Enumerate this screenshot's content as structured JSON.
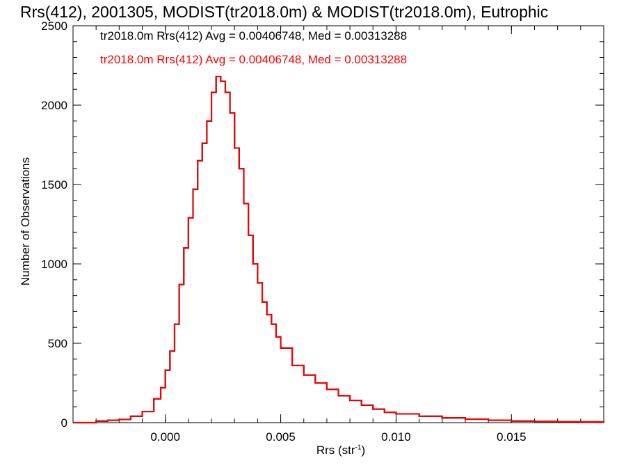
{
  "chart_data": {
    "type": "line",
    "title": "Rrs(412), 2001305, MODIST(tr2018.0m) & MODIST(tr2018.0m), Eutrophic",
    "xlabel_main": "Rrs (str",
    "xlabel_sup": "-1",
    "xlabel_close": ")",
    "ylabel": "Number of Observations",
    "xlim": [
      -0.004,
      0.019
    ],
    "ylim": [
      0,
      2500
    ],
    "x_ticks": [
      0.0,
      0.005,
      0.01,
      0.015
    ],
    "x_tick_labels": [
      "0.000",
      "0.005",
      "0.010",
      "0.015"
    ],
    "y_ticks": [
      0,
      500,
      1000,
      1500,
      2000,
      2500
    ],
    "y_tick_labels": [
      "0",
      "500",
      "1000",
      "1500",
      "2000",
      "2500"
    ],
    "annotations": [
      {
        "text": "tr2018.0m Rrs(412) Avg = 0.00406748, Med = 0.00313288",
        "color": "#000000"
      },
      {
        "text": "tr2018.0m Rrs(412) Avg = 0.00406748, Med = 0.00313288",
        "color": "#ff0000"
      }
    ],
    "series": [
      {
        "color": "#ff0000",
        "step": true,
        "x": [
          -0.004,
          -0.003,
          -0.0025,
          -0.002,
          -0.0015,
          -0.001,
          -0.0005,
          -0.0002,
          0.0,
          0.0002,
          0.0004,
          0.0006,
          0.0008,
          0.001,
          0.0012,
          0.0014,
          0.0016,
          0.0018,
          0.002,
          0.0022,
          0.0024,
          0.0026,
          0.0028,
          0.003,
          0.0032,
          0.0034,
          0.0036,
          0.0038,
          0.004,
          0.0042,
          0.0044,
          0.0046,
          0.0048,
          0.005,
          0.0055,
          0.006,
          0.0065,
          0.007,
          0.0075,
          0.008,
          0.0085,
          0.009,
          0.0095,
          0.01,
          0.011,
          0.012,
          0.013,
          0.014,
          0.015,
          0.016,
          0.017,
          0.018,
          0.019
        ],
        "y": [
          0,
          10,
          15,
          20,
          40,
          70,
          150,
          220,
          330,
          450,
          620,
          870,
          1100,
          1290,
          1470,
          1650,
          1760,
          1900,
          2080,
          2180,
          2150,
          2080,
          1950,
          1730,
          1600,
          1380,
          1180,
          1000,
          880,
          760,
          680,
          620,
          540,
          470,
          360,
          300,
          250,
          210,
          170,
          140,
          110,
          85,
          65,
          55,
          40,
          30,
          22,
          15,
          10,
          8,
          6,
          5,
          3
        ]
      }
    ]
  }
}
